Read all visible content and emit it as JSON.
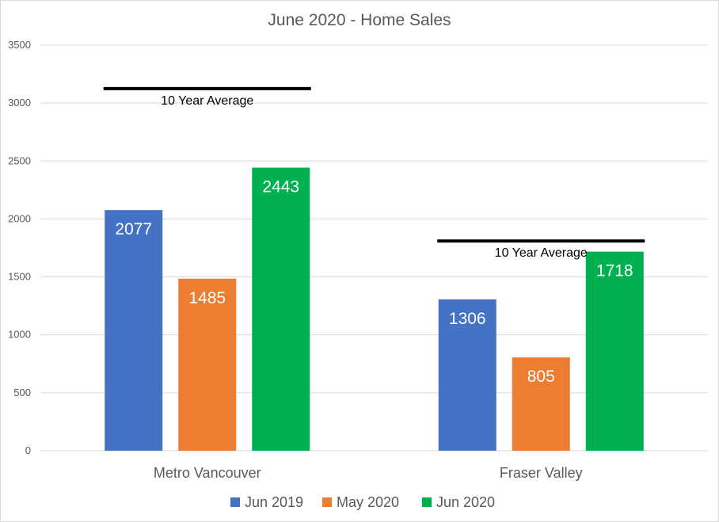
{
  "chart_data": {
    "type": "bar",
    "title": "June 2020 - Home Sales",
    "xlabel": "",
    "ylabel": "",
    "ylim": [
      0,
      3500
    ],
    "yticks": [
      0,
      500,
      1000,
      1500,
      2000,
      2500,
      3000,
      3500
    ],
    "grid": true,
    "legend_position": "bottom",
    "categories": [
      "Metro Vancouver",
      "Fraser Valley"
    ],
    "series": [
      {
        "name": "Jun 2019",
        "values": [
          2077,
          1306
        ],
        "color": "#4472C4"
      },
      {
        "name": "May 2020",
        "values": [
          1485,
          805
        ],
        "color": "#ED7D31"
      },
      {
        "name": "Jun 2020",
        "values": [
          2443,
          1718
        ],
        "color": "#00B050"
      }
    ],
    "reference_lines": [
      {
        "label": "10 Year Average",
        "category": "Metro Vancouver",
        "value": 3125
      },
      {
        "label": "10 Year Average",
        "category": "Fraser Valley",
        "value": 1810
      }
    ]
  }
}
